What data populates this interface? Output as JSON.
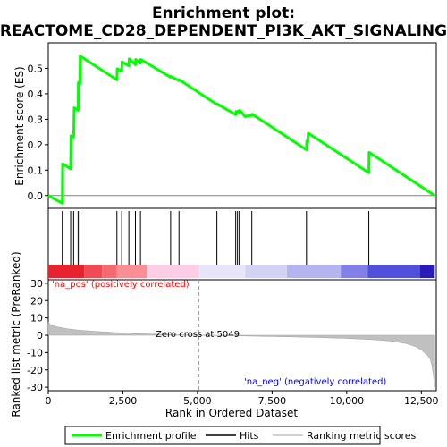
{
  "chart_data": {
    "type": "line",
    "title": "Enrichment plot:\nREACTOME_CD28_DEPENDENT_PI3K_AKT_SIGNALING",
    "title_lines": [
      "Enrichment plot:",
      "REACTOME_CD28_DEPENDENT_PI3K_AKT_SIGNALING"
    ],
    "xlabel": "Rank in Ordered Dataset",
    "xlim": [
      0,
      13000
    ],
    "x_ticks": [
      0,
      2500,
      5000,
      7500,
      10000,
      12500
    ],
    "x_tick_labels": [
      "0",
      "2,500",
      "5,000",
      "7,500",
      "10,000",
      "12,500"
    ],
    "es_panel": {
      "ylabel": "Enrichment score (ES)",
      "ylim": [
        -0.05,
        0.6
      ],
      "y_ticks": [
        0.0,
        0.1,
        0.2,
        0.3,
        0.4,
        0.5
      ],
      "y_tick_labels": [
        "0.0",
        "0.1",
        "0.2",
        "0.3",
        "0.4",
        "0.5"
      ],
      "series": [
        {
          "name": "Enrichment profile",
          "color": "#00ff00",
          "x": [
            0,
            470,
            480,
            750,
            760,
            850,
            870,
            1000,
            1010,
            1060,
            1070,
            2300,
            2310,
            2460,
            2470,
            2700,
            2710,
            2920,
            2930,
            3090,
            3100,
            4100,
            4110,
            4380,
            4390,
            5650,
            5660,
            6280,
            6290,
            6340,
            6350,
            6400,
            6410,
            6600,
            6610,
            6820,
            6830,
            8650,
            8660,
            8700,
            8710,
            10740,
            10750,
            12950
          ],
          "y": [
            0.0,
            -0.03,
            0.125,
            0.105,
            0.235,
            0.23,
            0.345,
            0.335,
            0.445,
            0.44,
            0.548,
            0.455,
            0.498,
            0.49,
            0.525,
            0.51,
            0.537,
            0.515,
            0.535,
            0.52,
            0.535,
            0.465,
            0.468,
            0.452,
            0.455,
            0.358,
            0.36,
            0.318,
            0.33,
            0.325,
            0.332,
            0.328,
            0.335,
            0.31,
            0.312,
            0.315,
            0.32,
            0.18,
            0.215,
            0.212,
            0.245,
            0.09,
            0.17,
            0.0
          ]
        }
      ]
    },
    "hits_panel": {
      "hit_positions": [
        470,
        750,
        850,
        1000,
        1060,
        2300,
        2460,
        2700,
        2920,
        3090,
        4100,
        4380,
        5650,
        6280,
        6340,
        6400,
        6820,
        8650,
        8700,
        10740
      ]
    },
    "ranking_panel": {
      "ylabel": "Ranked list metric (PreRanked)",
      "ylim": [
        -32,
        32
      ],
      "y_ticks": [
        30,
        20,
        10,
        0,
        -10,
        -20,
        -30
      ],
      "y_tick_labels": [
        "30",
        "20",
        "10",
        "0",
        "-10",
        "-20",
        "-30"
      ],
      "fill_color": "#c0c0c0",
      "curve_x": [
        0,
        100,
        300,
        600,
        1000,
        1500,
        2000,
        2500,
        3000,
        3500,
        4000,
        4500,
        5049,
        6000,
        7000,
        8000,
        9000,
        10000,
        10500,
        11000,
        11500,
        12000,
        12300,
        12500,
        12700,
        12800,
        12850,
        12900,
        12950
      ],
      "curve_y": [
        7.5,
        6.0,
        4.8,
        3.8,
        3.0,
        2.3,
        1.8,
        1.3,
        0.9,
        0.6,
        0.35,
        0.15,
        0.0,
        -0.25,
        -0.55,
        -0.9,
        -1.3,
        -1.8,
        -2.2,
        -2.7,
        -3.4,
        -4.8,
        -6.5,
        -8.5,
        -11.5,
        -14.0,
        -17.0,
        -23.0,
        -30.0
      ],
      "zero_cross_label": "Zero cross at 5049",
      "zero_cross_rank": 5049,
      "pos_label": "'na_pos' (positively correlated)",
      "neg_label": "'na_neg' (negatively correlated)",
      "pos_label_color": "#ff0000",
      "neg_label_color": "#0000ff"
    },
    "heat_bar": {
      "segments": [
        {
          "end": 1200,
          "color": "#e8222e"
        },
        {
          "end": 1800,
          "color": "#f04a52"
        },
        {
          "end": 2300,
          "color": "#f56a72"
        },
        {
          "end": 3300,
          "color": "#fa8e95"
        },
        {
          "end": 5049,
          "color": "#fccee6"
        },
        {
          "end": 6600,
          "color": "#e6e6f8"
        },
        {
          "end": 8000,
          "color": "#d2d2f4"
        },
        {
          "end": 9800,
          "color": "#b4b4ee"
        },
        {
          "end": 10700,
          "color": "#8080e8"
        },
        {
          "end": 12450,
          "color": "#5050dc"
        },
        {
          "end": 12950,
          "color": "#2a1ab8"
        }
      ]
    },
    "legend": {
      "placement": "bottom",
      "entries": [
        {
          "label": "Enrichment profile",
          "color": "#00ff00",
          "kind": "line-thick"
        },
        {
          "label": "Hits",
          "color": "#000000",
          "kind": "line"
        },
        {
          "label": "Ranking metric scores",
          "color": "#c0c0c0",
          "kind": "line"
        }
      ]
    }
  }
}
